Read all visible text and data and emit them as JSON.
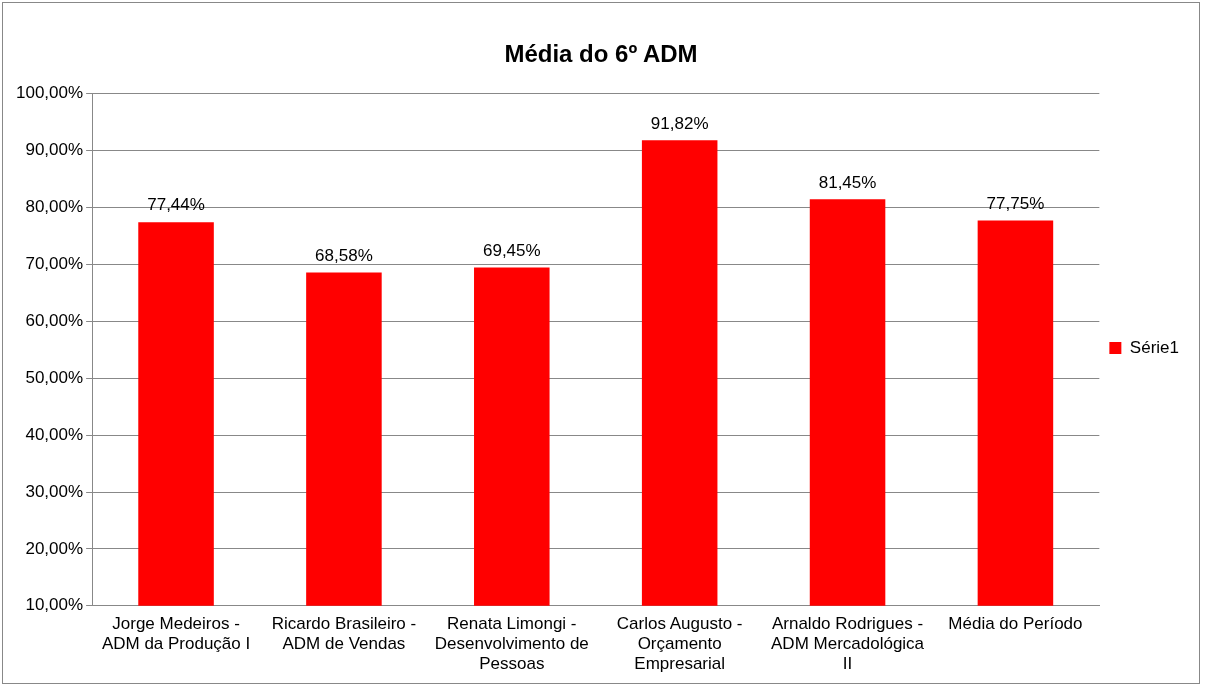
{
  "chart_data": {
    "type": "bar",
    "title": "Média do 6º ADM",
    "categories": [
      "Jorge Medeiros - ADM da Produção I",
      "Ricardo Brasileiro - ADM de Vendas",
      "Renata Limongi - Desenvolvimento de Pessoas",
      "Carlos Augusto - Orçamento Empresarial",
      "Arnaldo Rodrigues - ADM Mercadológica II",
      "Média do Período"
    ],
    "series": [
      {
        "name": "Série1",
        "color": "#ff0000",
        "values": [
          77.44,
          68.58,
          69.45,
          91.82,
          81.45,
          77.75
        ],
        "value_labels": [
          "77,44%",
          "68,58%",
          "69,45%",
          "91,82%",
          "81,45%",
          "77,75%"
        ]
      }
    ],
    "ylim": [
      10,
      100
    ],
    "yticks": [
      {
        "value": 10,
        "label": "10,00%"
      },
      {
        "value": 20,
        "label": "20,00%"
      },
      {
        "value": 30,
        "label": "30,00%"
      },
      {
        "value": 40,
        "label": "40,00%"
      },
      {
        "value": 50,
        "label": "50,00%"
      },
      {
        "value": 60,
        "label": "60,00%"
      },
      {
        "value": 70,
        "label": "70,00%"
      },
      {
        "value": 80,
        "label": "80,00%"
      },
      {
        "value": 90,
        "label": "90,00%"
      },
      {
        "value": 100,
        "label": "100,00%"
      }
    ],
    "grid": "y",
    "legend": "right"
  }
}
